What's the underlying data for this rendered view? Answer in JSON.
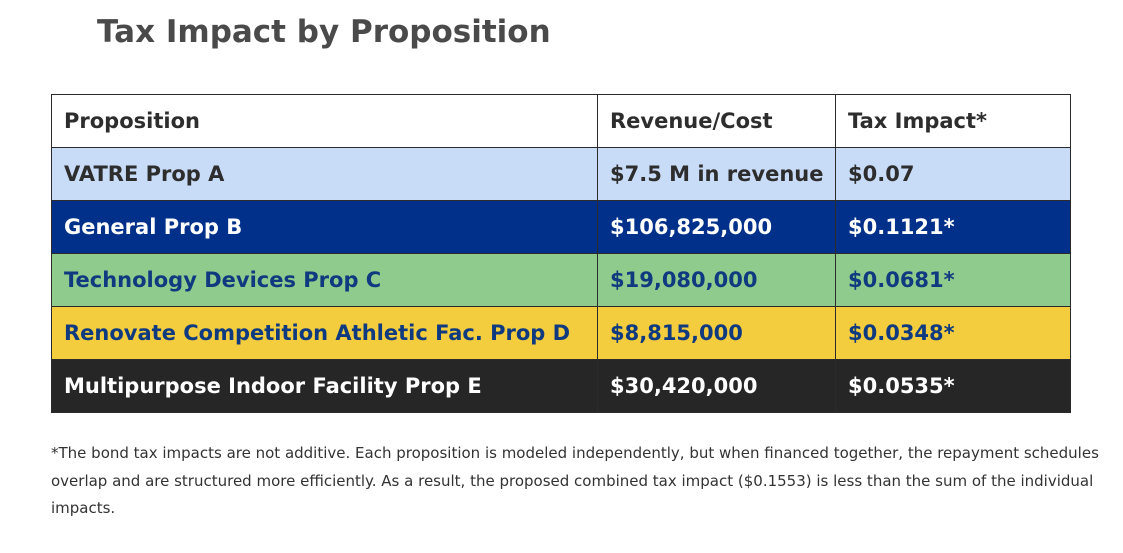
{
  "title": "Tax Impact by Proposition",
  "table": {
    "headers": [
      "Proposition",
      "Revenue/Cost",
      "Tax Impact*"
    ],
    "rows": [
      {
        "proposition": "VATRE Prop A",
        "revenue_cost": "$7.5 M in revenue",
        "tax_impact": "$0.07",
        "bg_color": "#c9dcf7",
        "name_color": "#2d2d2d",
        "value_color": "#2d2d2d"
      },
      {
        "proposition": "General Prop B",
        "revenue_cost": "$106,825,000",
        "tax_impact": "$0.1121*",
        "bg_color": "#003089",
        "name_color": "#ffffff",
        "value_color": "#ffffff"
      },
      {
        "proposition": "Technology Devices Prop C",
        "revenue_cost": "$19,080,000",
        "tax_impact": "$0.0681*",
        "bg_color": "#8ecb8c",
        "name_color": "#0f3a80",
        "value_color": "#0f3a80"
      },
      {
        "proposition": "Renovate Competition Athletic Fac.  Prop D",
        "revenue_cost": "$8,815,000",
        "tax_impact": "$0.0348*",
        "bg_color": "#f3cd3d",
        "name_color": "#0f3a80",
        "value_color": "#0f3a80"
      },
      {
        "proposition": "Multipurpose Indoor Facility  Prop E",
        "revenue_cost": "$30,420,000",
        "tax_impact": "$0.0535*",
        "bg_color": "#262626",
        "name_color": "#ffffff",
        "value_color": "#ffffff"
      }
    ]
  },
  "footnote": "*The bond tax impacts are not additive. Each proposition is modeled independently, but when financed together, the repayment schedules overlap and are structured more efficiently. As a result, the proposed combined tax impact ($0.1553) is less than the sum of the individual impacts."
}
